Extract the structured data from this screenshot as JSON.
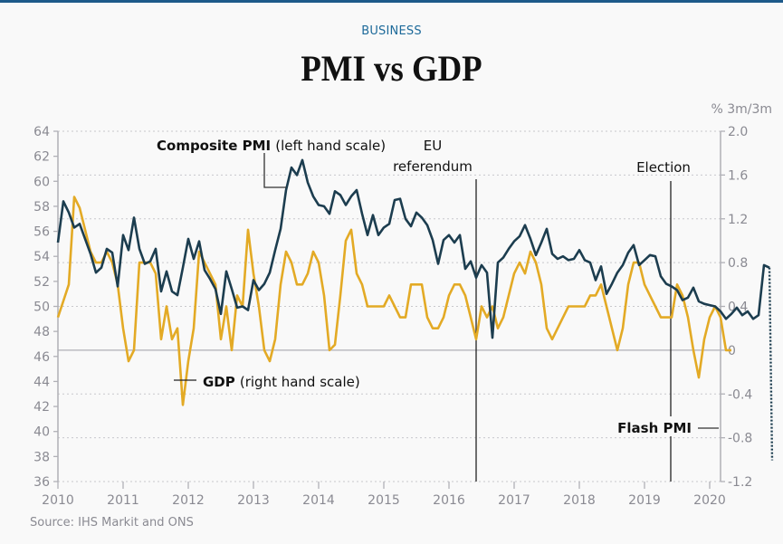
{
  "header": {
    "section": "BUSINESS",
    "title": "PMI vs GDP"
  },
  "source": "Source: IHS Markit and ONS",
  "chart_data": {
    "type": "line",
    "title": "PMI vs GDP",
    "right_axis_label": "% 3m/3m",
    "x_ticks": [
      "2010",
      "2011",
      "2012",
      "2013",
      "2014",
      "2015",
      "2016",
      "2017",
      "2018",
      "2019",
      "2020"
    ],
    "left_axis": {
      "label": "Composite PMI",
      "range": [
        36,
        64
      ],
      "ticks": [
        "64",
        "62",
        "60",
        "58",
        "56",
        "54",
        "52",
        "50",
        "48",
        "46",
        "44",
        "42",
        "40",
        "38",
        "36"
      ]
    },
    "right_axis": {
      "label": "% 3m/3m",
      "range": [
        -1.2,
        2.0
      ],
      "ticks": [
        "2.0",
        "1.6",
        "1.2",
        "0.8",
        "0.4",
        "0",
        "-0.4",
        "-0.8",
        "-1.2"
      ]
    },
    "grid": true,
    "series": [
      {
        "name": "Composite PMI",
        "axis": "left",
        "color": "#1c3d4f",
        "start": "2010-01",
        "frequency": "monthly",
        "values": [
          55.1,
          58.4,
          57.5,
          56.3,
          56.6,
          55.4,
          54.2,
          52.7,
          53.1,
          54.6,
          54.3,
          51.6,
          55.7,
          54.5,
          57.1,
          54.6,
          53.4,
          53.6,
          54.6,
          51.2,
          52.8,
          51.2,
          50.9,
          53.1,
          55.4,
          53.8,
          55.2,
          52.9,
          52.2,
          51.4,
          49.4,
          52.8,
          51.4,
          49.9,
          50.0,
          49.7,
          52.1,
          51.3,
          51.8,
          52.7,
          54.5,
          56.2,
          59.3,
          61.1,
          60.5,
          61.7,
          59.9,
          58.8,
          58.1,
          58.0,
          57.4,
          59.2,
          58.9,
          58.1,
          58.8,
          59.3,
          57.4,
          55.7,
          57.3,
          55.7,
          56.3,
          56.6,
          58.5,
          58.6,
          57.0,
          56.4,
          57.5,
          57.1,
          56.5,
          55.3,
          53.4,
          55.3,
          55.7,
          55.1,
          55.7,
          53.0,
          53.6,
          52.3,
          53.3,
          52.7,
          47.5,
          53.5,
          53.9,
          54.6,
          55.2,
          55.6,
          56.5,
          55.4,
          54.1,
          55.1,
          56.2,
          54.2,
          53.8,
          54.0,
          53.7,
          53.8,
          54.5,
          53.7,
          53.5,
          52.1,
          53.2,
          51.0,
          51.8,
          52.7,
          53.3,
          54.3,
          54.9,
          53.3,
          53.7,
          54.1,
          54.0,
          52.4,
          51.8,
          51.6,
          51.3,
          50.5,
          50.7,
          51.5,
          50.4,
          50.2,
          50.1,
          50.0,
          49.6,
          49.0,
          49.4,
          49.9,
          49.3,
          49.6,
          49.0,
          49.3,
          53.3,
          53.1
        ],
        "flash": {
          "label": "Flash PMI",
          "value": 37.7,
          "style": "dotted"
        }
      },
      {
        "name": "GDP",
        "axis": "right",
        "color": "#e3aa25",
        "unit": "% 3m/3m",
        "start": "2010-01",
        "frequency": "monthly",
        "values": [
          0.3,
          0.45,
          0.6,
          1.4,
          1.3,
          1.1,
          0.9,
          0.8,
          0.8,
          0.9,
          0.8,
          0.6,
          0.2,
          -0.1,
          0.0,
          0.8,
          0.8,
          0.8,
          0.7,
          0.1,
          0.4,
          0.1,
          0.2,
          -0.5,
          -0.1,
          0.2,
          0.9,
          0.8,
          0.7,
          0.6,
          0.1,
          0.4,
          0.0,
          0.5,
          0.4,
          1.1,
          0.7,
          0.4,
          0.0,
          -0.1,
          0.1,
          0.6,
          0.9,
          0.8,
          0.6,
          0.6,
          0.7,
          0.9,
          0.8,
          0.5,
          0.0,
          0.05,
          0.5,
          1.0,
          1.1,
          0.7,
          0.6,
          0.4,
          0.4,
          0.4,
          0.4,
          0.5,
          0.4,
          0.3,
          0.3,
          0.6,
          0.6,
          0.6,
          0.3,
          0.2,
          0.2,
          0.3,
          0.5,
          0.6,
          0.6,
          0.5,
          0.3,
          0.1,
          0.4,
          0.3,
          0.4,
          0.2,
          0.3,
          0.5,
          0.7,
          0.8,
          0.7,
          0.9,
          0.8,
          0.6,
          0.2,
          0.1,
          0.2,
          0.3,
          0.4,
          0.4,
          0.4,
          0.4,
          0.5,
          0.5,
          0.6,
          0.4,
          0.2,
          0.0,
          0.2,
          0.6,
          0.8,
          0.8,
          0.6,
          0.5,
          0.4,
          0.3,
          0.3,
          0.3,
          0.6,
          0.5,
          0.3,
          0.0,
          -0.25,
          0.1,
          0.3,
          0.4,
          0.3,
          0.0,
          0.0
        ]
      }
    ],
    "annotations": [
      {
        "text_bold": "Composite PMI",
        "text": "(left hand scale)"
      },
      {
        "text_bold": "GDP",
        "text": "(right hand scale)"
      },
      {
        "text_lines": [
          "EU",
          "referendum"
        ],
        "date": "2016-06"
      },
      {
        "text_lines": [
          "Election"
        ],
        "date": "2019-12"
      },
      {
        "text_bold": "Flash PMI",
        "text": ""
      }
    ]
  }
}
